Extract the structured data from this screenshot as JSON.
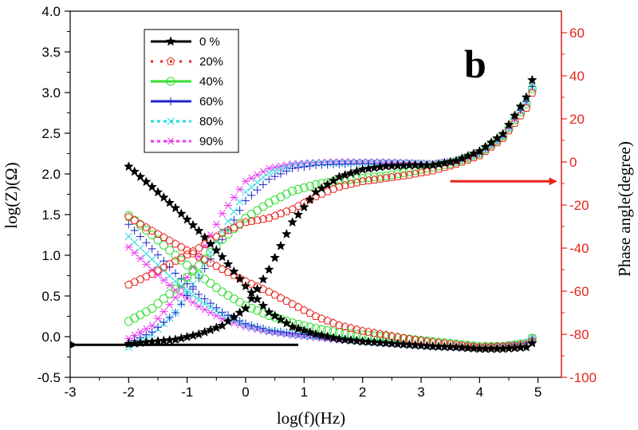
{
  "chart_data": {
    "type": "scatter",
    "panel_label": "b",
    "xlabel": "log(f)(Hz)",
    "ylabel_left": "log(Z)(Ω)",
    "ylabel_right": "Phase angle(degree)",
    "xlim": [
      -3,
      5.4
    ],
    "ylim_left": [
      -0.5,
      4.0
    ],
    "ylim_right": [
      -100,
      70
    ],
    "xticks": [
      -3,
      -2,
      -1,
      0,
      1,
      2,
      3,
      4,
      5
    ],
    "xtick_labels": [
      "-3",
      "-2",
      "-1",
      "0",
      "1",
      "2",
      "3",
      "4",
      "5"
    ],
    "yticks_left": [
      -0.5,
      0.0,
      0.5,
      1.0,
      1.5,
      2.0,
      2.5,
      3.0,
      3.5,
      4.0
    ],
    "ytick_labels_left": [
      "-0.5",
      "0.0",
      "0.5",
      "1.0",
      "1.5",
      "2.0",
      "2.5",
      "3.0",
      "3.5",
      "4.0"
    ],
    "yticks_right": [
      -100,
      -80,
      -60,
      -40,
      -20,
      0,
      20,
      40,
      60
    ],
    "ytick_labels_right": [
      "-100",
      "-80",
      "-60",
      "-40",
      "-20",
      "0",
      "20",
      "40",
      "60"
    ],
    "grid": false,
    "legend_position": "top-left",
    "colors": {
      "left_axis": "#000000",
      "right_axis": "#e8241c"
    },
    "arrows": [
      {
        "axis": "left",
        "from": [
          0.9,
          -0.1
        ],
        "to": [
          -2.9,
          -0.1
        ],
        "color": "#000000"
      },
      {
        "axis": "right",
        "from": [
          3.5,
          -9
        ],
        "to": [
          5.3,
          -9
        ],
        "color": "#e8241c"
      }
    ],
    "series": [
      {
        "name": "0 %",
        "color": "#000000",
        "marker": "star",
        "logZ": {
          "x": [
            -2.0,
            -1.6,
            -1.2,
            -0.8,
            -0.4,
            0.0,
            0.4,
            0.8,
            1.2,
            1.6,
            2.0,
            2.4,
            2.8,
            3.2,
            3.6,
            4.0,
            4.4,
            4.8,
            4.9
          ],
          "y": [
            2.09,
            1.84,
            1.58,
            1.3,
            0.98,
            0.62,
            0.3,
            0.12,
            0.03,
            -0.03,
            -0.06,
            -0.08,
            -0.1,
            -0.12,
            -0.13,
            -0.15,
            -0.15,
            -0.13,
            -0.08
          ]
        },
        "phase": {
          "x": [
            -2.0,
            -1.6,
            -1.2,
            -0.8,
            -0.4,
            0.0,
            0.4,
            0.8,
            1.2,
            1.6,
            2.0,
            2.4,
            2.8,
            3.2,
            3.6,
            4.0,
            4.4,
            4.8,
            4.9
          ],
          "y": [
            -84.5,
            -83.5,
            -82.5,
            -80.0,
            -76.0,
            -68.0,
            -50.0,
            -28.0,
            -14.0,
            -7.0,
            -3.5,
            -2.0,
            -1.5,
            -1.5,
            0.5,
            5.0,
            13.0,
            30.0,
            38.0
          ]
        }
      },
      {
        "name": "20%",
        "color": "#e8241c",
        "marker": "pentagon",
        "logZ": {
          "x": [
            -2.0,
            -1.6,
            -1.2,
            -0.8,
            -0.4,
            0.0,
            0.4,
            0.8,
            1.2,
            1.6,
            2.0,
            2.4,
            2.8,
            3.2,
            3.6,
            4.0,
            4.4,
            4.8,
            4.9
          ],
          "y": [
            1.47,
            1.3,
            1.14,
            0.98,
            0.83,
            0.68,
            0.55,
            0.4,
            0.25,
            0.14,
            0.07,
            0.02,
            -0.03,
            -0.07,
            -0.1,
            -0.13,
            -0.12,
            -0.1,
            -0.06
          ]
        },
        "phase": {
          "x": [
            -2.0,
            -1.6,
            -1.2,
            -0.8,
            -0.4,
            0.0,
            0.4,
            0.8,
            1.2,
            1.6,
            2.0,
            2.4,
            2.8,
            3.2,
            3.6,
            4.0,
            4.4,
            4.8,
            4.9
          ],
          "y": [
            -57.0,
            -52.0,
            -46.0,
            -40.0,
            -33.0,
            -28.0,
            -26.0,
            -22.0,
            -16.0,
            -11.5,
            -9.0,
            -7.5,
            -6.0,
            -4.0,
            -1.0,
            3.0,
            11.0,
            25.0,
            32.0
          ]
        }
      },
      {
        "name": "40%",
        "color": "#33dd33",
        "marker": "circle-dot",
        "logZ": {
          "x": [
            -2.0,
            -1.6,
            -1.2,
            -0.8,
            -0.4,
            0.0,
            0.4,
            0.8,
            1.2,
            1.6,
            2.0,
            2.4,
            2.8,
            3.2,
            3.6,
            4.0,
            4.4,
            4.8,
            4.9
          ],
          "y": [
            1.49,
            1.25,
            1.0,
            0.76,
            0.55,
            0.38,
            0.26,
            0.17,
            0.1,
            0.05,
            0.02,
            0.0,
            -0.03,
            -0.06,
            -0.09,
            -0.12,
            -0.12,
            -0.08,
            -0.02
          ]
        },
        "phase": {
          "x": [
            -2.0,
            -1.6,
            -1.2,
            -0.8,
            -0.4,
            0.0,
            0.4,
            0.8,
            1.2,
            1.6,
            2.0,
            2.4,
            2.8,
            3.2,
            3.6,
            4.0,
            4.4,
            4.8,
            4.9
          ],
          "y": [
            -74.0,
            -68.0,
            -59.0,
            -48.0,
            -36.0,
            -26.0,
            -19.0,
            -13.5,
            -10.5,
            -8.5,
            -7.5,
            -6.5,
            -4.5,
            -2.5,
            0.0,
            4.0,
            12.0,
            27.0,
            34.0
          ]
        }
      },
      {
        "name": "60%",
        "color": "#2222cc",
        "marker": "plus",
        "logZ": {
          "x": [
            -2.0,
            -1.6,
            -1.2,
            -0.8,
            -0.4,
            0.0,
            0.4,
            0.8,
            1.2,
            1.6,
            2.0,
            2.4,
            2.8,
            3.2,
            3.6,
            4.0,
            4.4,
            4.8,
            4.9
          ],
          "y": [
            1.38,
            1.08,
            0.78,
            0.52,
            0.3,
            0.16,
            0.08,
            0.04,
            0.01,
            -0.02,
            -0.05,
            -0.07,
            -0.09,
            -0.11,
            -0.12,
            -0.13,
            -0.12,
            -0.08,
            -0.02
          ]
        },
        "phase": {
          "x": [
            -2.0,
            -1.6,
            -1.2,
            -0.8,
            -0.4,
            0.0,
            0.4,
            0.8,
            1.2,
            1.6,
            2.0,
            2.4,
            2.8,
            3.2,
            3.6,
            4.0,
            4.4,
            4.8,
            4.9
          ],
          "y": [
            -84.0,
            -79.0,
            -70.0,
            -54.0,
            -36.0,
            -18.0,
            -8.0,
            -3.0,
            -1.5,
            -1.0,
            -0.8,
            -0.8,
            -0.8,
            -1.0,
            0.5,
            4.0,
            12.0,
            28.0,
            35.0
          ]
        }
      },
      {
        "name": "80%",
        "color": "#22dddd",
        "marker": "cross",
        "logZ": {
          "x": [
            -2.0,
            -1.6,
            -1.2,
            -0.8,
            -0.4,
            0.0,
            0.4,
            0.8,
            1.2,
            1.6,
            2.0,
            2.4,
            2.8,
            3.2,
            3.6,
            4.0,
            4.4,
            4.8,
            4.9
          ],
          "y": [
            1.23,
            0.95,
            0.68,
            0.45,
            0.27,
            0.14,
            0.07,
            0.03,
            0.0,
            -0.03,
            -0.06,
            -0.08,
            -0.1,
            -0.12,
            -0.13,
            -0.13,
            -0.12,
            -0.08,
            -0.02
          ]
        },
        "phase": {
          "x": [
            -2.0,
            -1.6,
            -1.2,
            -0.8,
            -0.4,
            0.0,
            0.4,
            0.8,
            1.2,
            1.6,
            2.0,
            2.4,
            2.8,
            3.2,
            3.6,
            4.0,
            4.4,
            4.8,
            4.9
          ],
          "y": [
            -86.0,
            -80.0,
            -70.0,
            -52.0,
            -32.0,
            -14.0,
            -5.0,
            -1.5,
            -0.5,
            -0.5,
            -0.3,
            -0.3,
            -0.5,
            -1.0,
            0.5,
            4.0,
            12.0,
            28.0,
            35.0
          ]
        }
      },
      {
        "name": "90%",
        "color": "#ee33ee",
        "marker": "asterisk",
        "logZ": {
          "x": [
            -2.0,
            -1.6,
            -1.2,
            -0.8,
            -0.4,
            0.0,
            0.4,
            0.8,
            1.2,
            1.6,
            2.0,
            2.4,
            2.8,
            3.2,
            3.6,
            4.0,
            4.4,
            4.8,
            4.9
          ],
          "y": [
            1.1,
            0.82,
            0.57,
            0.37,
            0.22,
            0.12,
            0.06,
            0.02,
            -0.01,
            -0.04,
            -0.06,
            -0.08,
            -0.1,
            -0.12,
            -0.13,
            -0.13,
            -0.12,
            -0.08,
            -0.02
          ]
        },
        "phase": {
          "x": [
            -2.0,
            -1.6,
            -1.2,
            -0.8,
            -0.4,
            0.0,
            0.4,
            0.8,
            1.2,
            1.6,
            2.0,
            2.4,
            2.8,
            3.2,
            3.6,
            4.0,
            4.4,
            4.8,
            4.9
          ],
          "y": [
            -82.0,
            -76.0,
            -63.0,
            -44.0,
            -24.0,
            -9.0,
            -3.0,
            -1.0,
            -0.3,
            0.0,
            0.0,
            0.0,
            -0.3,
            -0.8,
            0.5,
            4.0,
            12.0,
            28.0,
            35.0
          ]
        }
      }
    ]
  }
}
